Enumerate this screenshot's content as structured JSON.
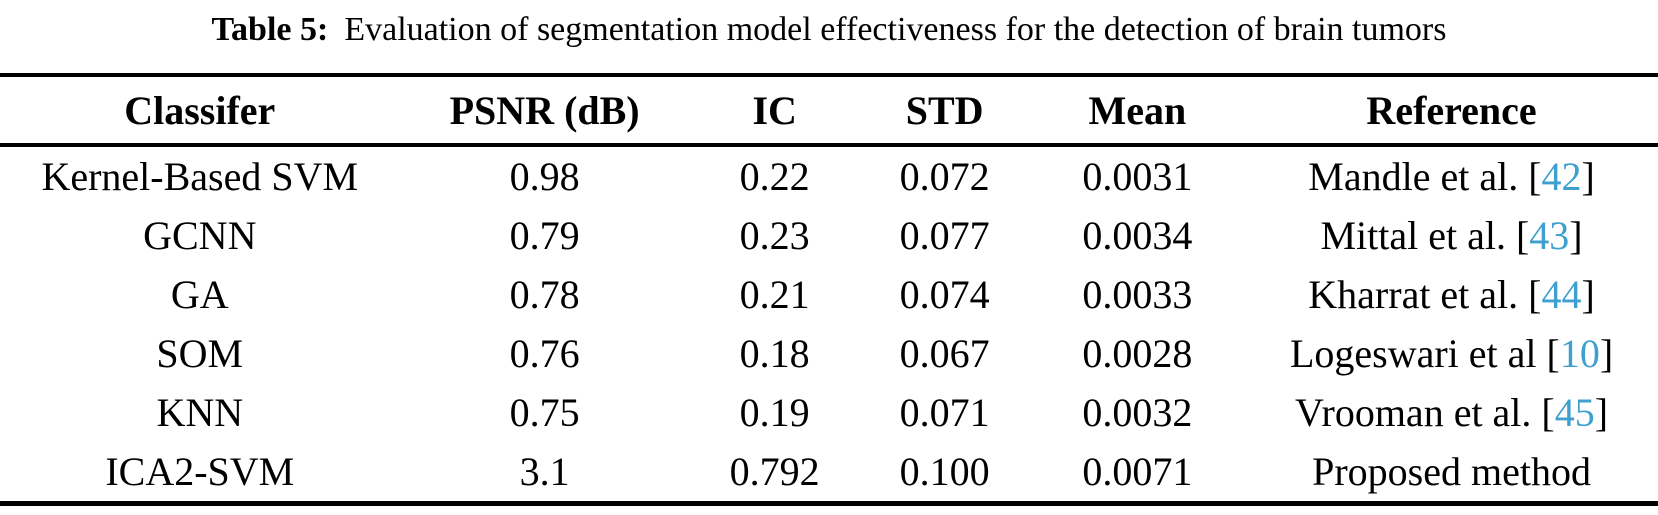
{
  "caption": {
    "label": "Table 5:",
    "text": "Evaluation of segmentation model effectiveness for the detection of brain tumors"
  },
  "colors": {
    "text": "#000000",
    "rule": "#000000",
    "citation": "#3fa0d0"
  },
  "table": {
    "headers": [
      "Classifer",
      "PSNR (dB)",
      "IC",
      "STD",
      "Mean",
      "Reference"
    ],
    "rows": [
      {
        "classifier": "Kernel-Based SVM",
        "psnr": "0.98",
        "ic": "0.22",
        "std": "0.072",
        "mean": "0.0031",
        "ref_pre": "Mandle et al. [",
        "cite": "42",
        "ref_post": "]"
      },
      {
        "classifier": "GCNN",
        "psnr": "0.79",
        "ic": "0.23",
        "std": "0.077",
        "mean": "0.0034",
        "ref_pre": "Mittal et al. [",
        "cite": "43",
        "ref_post": "]"
      },
      {
        "classifier": "GA",
        "psnr": "0.78",
        "ic": "0.21",
        "std": "0.074",
        "mean": "0.0033",
        "ref_pre": "Kharrat et al. [",
        "cite": "44",
        "ref_post": "]"
      },
      {
        "classifier": "SOM",
        "psnr": "0.76",
        "ic": "0.18",
        "std": "0.067",
        "mean": "0.0028",
        "ref_pre": "Logeswari et al [",
        "cite": "10",
        "ref_post": "]"
      },
      {
        "classifier": "KNN",
        "psnr": "0.75",
        "ic": "0.19",
        "std": "0.071",
        "mean": "0.0032",
        "ref_pre": "Vrooman et al. [",
        "cite": "45",
        "ref_post": "]"
      },
      {
        "classifier": "ICA2-SVM",
        "psnr": "3.1",
        "ic": "0.792",
        "std": "0.100",
        "mean": "0.0071",
        "ref_pre": "Proposed method",
        "cite": "",
        "ref_post": ""
      }
    ]
  }
}
